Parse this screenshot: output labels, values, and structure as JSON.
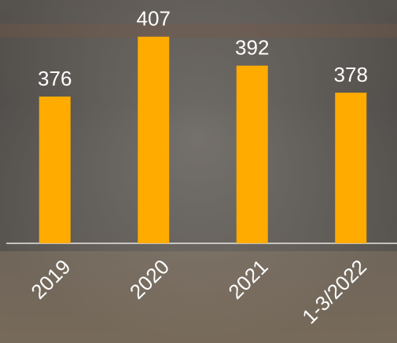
{
  "chart_data": {
    "type": "bar",
    "categories": [
      "2019",
      "2020",
      "2021",
      "1-3/2022"
    ],
    "values": [
      376,
      407,
      392,
      378
    ],
    "color": "#ffab00",
    "ylim": [
      300,
      426
    ]
  }
}
